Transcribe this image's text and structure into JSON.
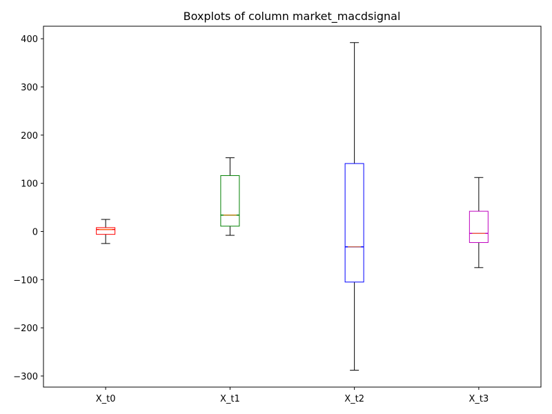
{
  "chart_data": {
    "type": "box",
    "title": "Boxplots of column market_macdsignal",
    "xlabel": "",
    "ylabel": "",
    "ylim": [
      -323,
      426
    ],
    "yticks": [
      -300,
      -200,
      -100,
      0,
      100,
      200,
      300,
      400
    ],
    "ytick_labels": [
      "−300",
      "−200",
      "−100",
      "0",
      "100",
      "200",
      "300",
      "400"
    ],
    "grid": false,
    "categories": [
      "X_t0",
      "X_t1",
      "X_t2",
      "X_t3"
    ],
    "boxes": [
      {
        "name": "X_t0",
        "whisker_low": -25,
        "q1": -6,
        "median": 4,
        "q3": 8,
        "whisker_high": 25,
        "color": "#ff0000"
      },
      {
        "name": "X_t1",
        "whisker_low": -8,
        "q1": 11,
        "median": 34,
        "q3": 116,
        "whisker_high": 153,
        "color": "#008000"
      },
      {
        "name": "X_t2",
        "whisker_low": -288,
        "q1": -105,
        "median": -32,
        "q3": 141,
        "whisker_high": 392,
        "color": "#0000ff"
      },
      {
        "name": "X_t3",
        "whisker_low": -75,
        "q1": -23,
        "median": -4,
        "q3": 42,
        "whisker_high": 112,
        "color": "#bf00bf"
      }
    ],
    "median_color": "#ff7f0e"
  }
}
